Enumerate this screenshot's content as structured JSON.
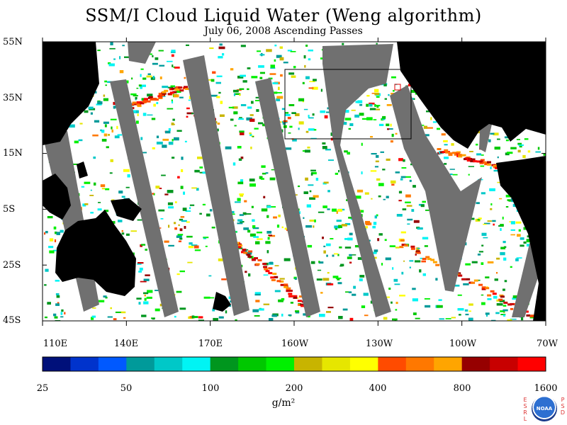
{
  "title": "SSM/I Cloud Liquid Water (Weng algorithm)",
  "subtitle": "July 06, 2008  Ascending Passes",
  "lat_labels": [
    "55N",
    "35N",
    "15N",
    "5S",
    "25S",
    "45S"
  ],
  "lon_labels": [
    "110E",
    "140E",
    "170E",
    "160W",
    "130W",
    "100W",
    "70W"
  ],
  "colorbar": {
    "colors": [
      "#00107a",
      "#0033cc",
      "#0059ff",
      "#009a9a",
      "#00c8c8",
      "#00f4f4",
      "#00961e",
      "#00c800",
      "#00f000",
      "#c8b400",
      "#e6e600",
      "#ffff00",
      "#ff4b00",
      "#ff7800",
      "#ffa500",
      "#960000",
      "#c80000",
      "#ff0000"
    ],
    "labels": [
      "25",
      "50",
      "100",
      "200",
      "400",
      "800",
      "1600"
    ],
    "units": "g/m²"
  },
  "logo": {
    "left_text": "ESRL",
    "right_text": "PSD",
    "center_text": "NOAA"
  }
}
